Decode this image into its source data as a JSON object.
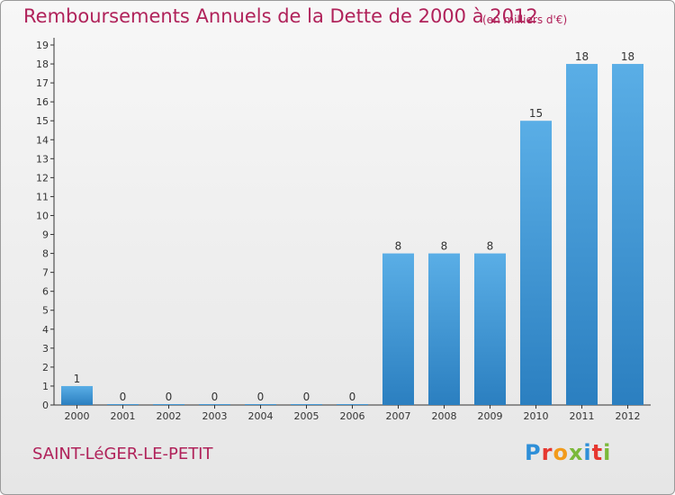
{
  "header": {
    "title": "Remboursements Annuels de la Dette de 2000 à 2012",
    "unit": "(en milliers d'€)"
  },
  "footer": {
    "commune": "SAINT-LéGER-LE-PETIT",
    "logo_text": "Proxiti"
  },
  "colors": {
    "accent": "#b0225a",
    "bar_top": "#5aaee6",
    "bar_bottom": "#2b7fc0"
  },
  "chart_data": {
    "type": "bar",
    "title": "Remboursements Annuels de la Dette de 2000 à 2012",
    "subtitle": "(en milliers d'€)",
    "xlabel": "",
    "ylabel": "",
    "categories": [
      "2000",
      "2001",
      "2002",
      "2003",
      "2004",
      "2005",
      "2006",
      "2007",
      "2008",
      "2009",
      "2010",
      "2011",
      "2012"
    ],
    "values": [
      1,
      0,
      0,
      0,
      0,
      0,
      0,
      8,
      8,
      8,
      15,
      18,
      18
    ],
    "data_labels": [
      "1",
      "0",
      "0",
      "0",
      "0",
      "0",
      "0",
      "8",
      "8",
      "8",
      "15",
      "18",
      "18"
    ],
    "ylim": [
      0,
      19
    ],
    "yticks": [
      0,
      1,
      2,
      3,
      4,
      5,
      6,
      7,
      8,
      9,
      10,
      11,
      12,
      13,
      14,
      15,
      16,
      17,
      18,
      19
    ],
    "grid": false,
    "legend": "none"
  }
}
